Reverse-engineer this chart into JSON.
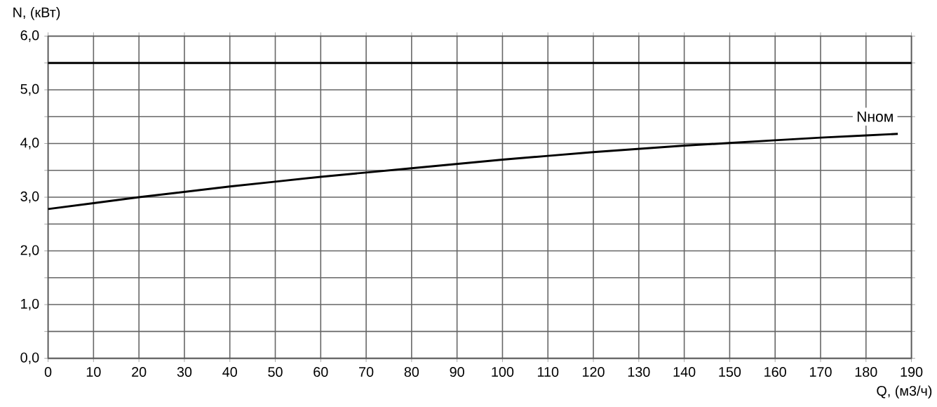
{
  "chart_data": {
    "type": "line",
    "xlabel": "Q, (м3/ч)",
    "ylabel": "N, (кВт)",
    "xlim": [
      0,
      190
    ],
    "ylim": [
      0,
      6
    ],
    "xticks": [
      0,
      10,
      20,
      30,
      40,
      50,
      60,
      70,
      80,
      90,
      100,
      110,
      120,
      130,
      140,
      150,
      160,
      170,
      180,
      190
    ],
    "yticks": [
      {
        "value": 0,
        "label": "0,0"
      },
      {
        "value": 0.5,
        "label": null
      },
      {
        "value": 1,
        "label": "1,0"
      },
      {
        "value": 1.5,
        "label": null
      },
      {
        "value": 2,
        "label": "2,0"
      },
      {
        "value": 2.5,
        "label": null
      },
      {
        "value": 3,
        "label": "3,0"
      },
      {
        "value": 3.5,
        "label": null
      },
      {
        "value": 4,
        "label": "4,0"
      },
      {
        "value": 4.5,
        "label": null
      },
      {
        "value": 5,
        "label": "5,0"
      },
      {
        "value": 5.5,
        "label": null
      },
      {
        "value": 6,
        "label": "6,0"
      }
    ],
    "grid": true,
    "marker": "none",
    "line_style": "solid",
    "x": [
      0,
      10,
      20,
      30,
      40,
      50,
      60,
      70,
      80,
      90,
      100,
      110,
      120,
      130,
      140,
      150,
      160,
      170,
      180,
      187
    ],
    "series": [
      {
        "color": "#000000",
        "values": [
          2.78,
          2.89,
          3.0,
          3.1,
          3.2,
          3.29,
          3.38,
          3.46,
          3.54,
          3.62,
          3.7,
          3.77,
          3.84,
          3.9,
          3.96,
          4.01,
          4.06,
          4.11,
          4.15,
          4.18
        ]
      }
    ],
    "ref_lines": [
      {
        "axis": "y",
        "value": 5.5,
        "color": "#000000"
      }
    ],
    "annotations": [
      {
        "text": "Nном",
        "x": 182,
        "y": 4.5
      }
    ]
  }
}
